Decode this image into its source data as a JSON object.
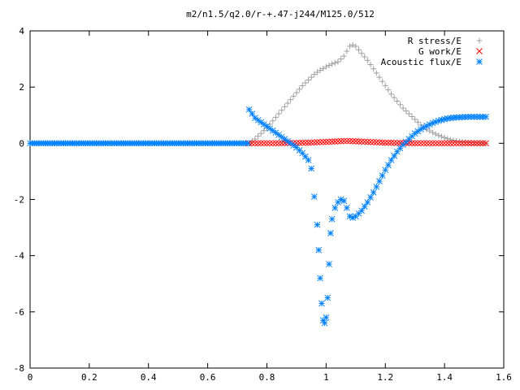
{
  "chart_data": {
    "type": "scatter",
    "title": "m2/n1.5/q2.0/r-+.47-j244/M125.0/512",
    "xlabel": "",
    "ylabel": "",
    "xlim": [
      0,
      1.6
    ],
    "ylim": [
      -8,
      4
    ],
    "xticks": [
      "0",
      "0.2",
      "0.4",
      "0.6",
      "0.8",
      "1",
      "1.2",
      "1.4",
      "1.6"
    ],
    "yticks": [
      "4",
      "2",
      "0",
      "-2",
      "-4",
      "-6",
      "-8"
    ],
    "legend_position": "top-right",
    "grid": false,
    "series": [
      {
        "name": "R stress/E",
        "marker": "plus",
        "color": "#a0a0a0",
        "x": [
          0.74,
          0.76,
          0.78,
          0.8,
          0.82,
          0.84,
          0.86,
          0.88,
          0.9,
          0.92,
          0.94,
          0.96,
          0.98,
          1.0,
          1.02,
          1.04,
          1.06,
          1.08,
          1.09,
          1.1,
          1.12,
          1.14,
          1.16,
          1.18,
          1.2,
          1.22,
          1.24,
          1.26,
          1.28,
          1.3,
          1.32,
          1.34,
          1.36,
          1.38,
          1.4,
          1.42,
          1.44,
          1.46,
          1.48,
          1.5,
          1.52,
          1.54
        ],
        "y": [
          0.0,
          0.15,
          0.35,
          0.55,
          0.8,
          1.05,
          1.3,
          1.55,
          1.8,
          2.05,
          2.25,
          2.45,
          2.6,
          2.72,
          2.82,
          2.9,
          3.1,
          3.45,
          3.5,
          3.45,
          3.2,
          2.95,
          2.65,
          2.35,
          2.05,
          1.75,
          1.5,
          1.25,
          1.05,
          0.85,
          0.65,
          0.5,
          0.38,
          0.28,
          0.2,
          0.13,
          0.08,
          0.05,
          0.03,
          0.02,
          0.01,
          0.0
        ]
      },
      {
        "name": "G work/E",
        "marker": "cross",
        "color": "#ff0000",
        "x": [
          0.74,
          0.76,
          0.78,
          0.8,
          0.82,
          0.84,
          0.86,
          0.88,
          0.9,
          0.92,
          0.94,
          0.96,
          0.98,
          1.0,
          1.02,
          1.04,
          1.06,
          1.08,
          1.1,
          1.12,
          1.14,
          1.16,
          1.18,
          1.2,
          1.22,
          1.24,
          1.26,
          1.28,
          1.3,
          1.32,
          1.34,
          1.36,
          1.38,
          1.4,
          1.42,
          1.44,
          1.46,
          1.48,
          1.5,
          1.52,
          1.54
        ],
        "y": [
          0.0,
          0.0,
          0.0,
          0.0,
          0.0,
          0.0,
          0.01,
          0.01,
          0.01,
          0.02,
          0.02,
          0.03,
          0.04,
          0.05,
          0.06,
          0.07,
          0.08,
          0.08,
          0.07,
          0.06,
          0.05,
          0.04,
          0.03,
          0.02,
          0.02,
          0.01,
          0.01,
          0.01,
          0.0,
          0.0,
          0.0,
          0.0,
          0.0,
          0.0,
          0.0,
          0.0,
          0.0,
          0.0,
          0.0,
          0.0,
          0.0
        ]
      },
      {
        "name": "Acoustic flux/E",
        "marker": "star",
        "color": "#0080ff",
        "x": [
          0.74,
          0.76,
          0.78,
          0.8,
          0.82,
          0.84,
          0.86,
          0.88,
          0.9,
          0.92,
          0.94,
          0.95,
          0.96,
          0.97,
          0.975,
          0.98,
          0.985,
          0.99,
          0.995,
          1.0,
          1.005,
          1.01,
          1.015,
          1.02,
          1.03,
          1.04,
          1.05,
          1.06,
          1.07,
          1.08,
          1.09,
          1.1,
          1.12,
          1.14,
          1.16,
          1.18,
          1.2,
          1.22,
          1.24,
          1.26,
          1.28,
          1.3,
          1.32,
          1.34,
          1.36,
          1.38,
          1.4,
          1.42,
          1.44,
          1.46,
          1.48,
          1.5,
          1.52,
          1.54
        ],
        "y": [
          1.2,
          0.9,
          0.75,
          0.6,
          0.45,
          0.3,
          0.15,
          0.0,
          -0.15,
          -0.35,
          -0.6,
          -0.9,
          -1.9,
          -2.9,
          -3.8,
          -4.8,
          -5.7,
          -6.3,
          -6.4,
          -6.2,
          -5.5,
          -4.3,
          -3.2,
          -2.7,
          -2.3,
          -2.1,
          -2.0,
          -2.05,
          -2.3,
          -2.6,
          -2.65,
          -2.6,
          -2.4,
          -2.1,
          -1.75,
          -1.35,
          -0.95,
          -0.6,
          -0.3,
          -0.05,
          0.15,
          0.35,
          0.5,
          0.62,
          0.72,
          0.8,
          0.86,
          0.9,
          0.92,
          0.93,
          0.94,
          0.94,
          0.94,
          0.94
        ]
      }
    ]
  }
}
